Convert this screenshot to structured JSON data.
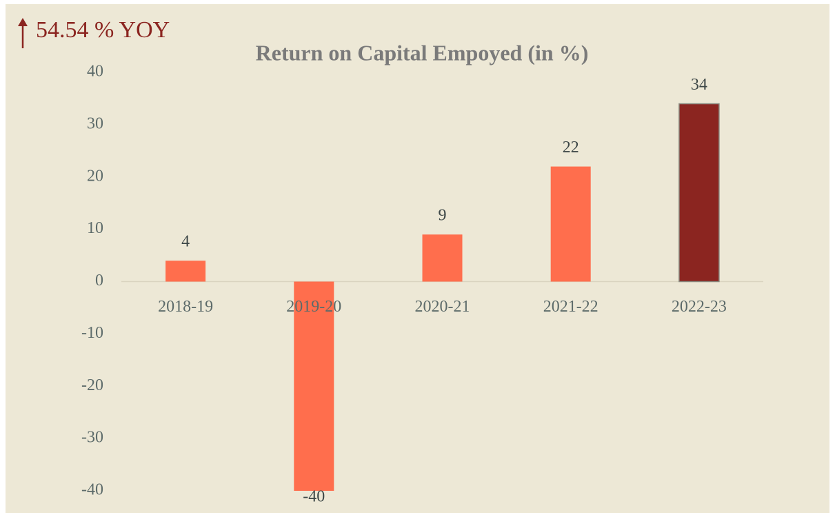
{
  "chart_data": {
    "type": "bar",
    "title": "Return on Capital Empoyed (in %)",
    "annotation": "54.54 % YOY",
    "categories": [
      "2018-19",
      "2019-20",
      "2020-21",
      "2021-22",
      "2022-23"
    ],
    "values": [
      4,
      -40,
      9,
      22,
      34
    ],
    "colors": [
      "#ff6e4d",
      "#ff6e4d",
      "#ff6e4d",
      "#ff6e4d",
      "#8b2520"
    ],
    "ylim": [
      -40,
      40
    ],
    "yticks": [
      -40,
      -30,
      -20,
      -10,
      0,
      10,
      20,
      30,
      40
    ],
    "grid": false
  }
}
